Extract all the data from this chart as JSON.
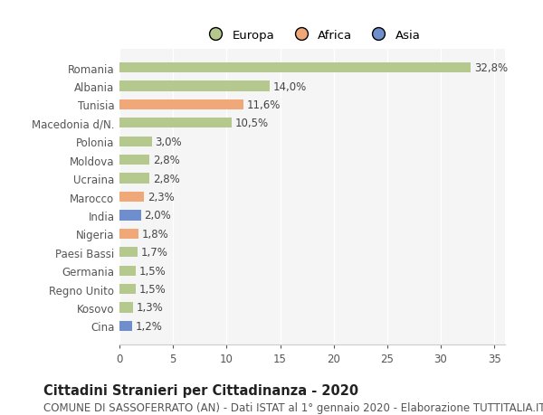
{
  "categories": [
    "Romania",
    "Albania",
    "Tunisia",
    "Macedonia d/N.",
    "Polonia",
    "Moldova",
    "Ucraina",
    "Marocco",
    "India",
    "Nigeria",
    "Paesi Bassi",
    "Germania",
    "Regno Unito",
    "Kosovo",
    "Cina"
  ],
  "values": [
    32.8,
    14.0,
    11.6,
    10.5,
    3.0,
    2.8,
    2.8,
    2.3,
    2.0,
    1.8,
    1.7,
    1.5,
    1.5,
    1.3,
    1.2
  ],
  "labels": [
    "32,8%",
    "14,0%",
    "11,6%",
    "10,5%",
    "3,0%",
    "2,8%",
    "2,8%",
    "2,3%",
    "2,0%",
    "1,8%",
    "1,7%",
    "1,5%",
    "1,5%",
    "1,3%",
    "1,2%"
  ],
  "continents": [
    "Europa",
    "Europa",
    "Africa",
    "Europa",
    "Europa",
    "Europa",
    "Europa",
    "Africa",
    "Asia",
    "Africa",
    "Europa",
    "Europa",
    "Europa",
    "Europa",
    "Asia"
  ],
  "colors": {
    "Europa": "#b5c98e",
    "Africa": "#f0a878",
    "Asia": "#6e8fcb"
  },
  "legend_labels": [
    "Europa",
    "Africa",
    "Asia"
  ],
  "legend_colors": [
    "#b5c98e",
    "#f0a878",
    "#6e8fcb"
  ],
  "title": "Cittadini Stranieri per Cittadinanza - 2020",
  "subtitle": "COMUNE DI SASSOFERRATO (AN) - Dati ISTAT al 1° gennaio 2020 - Elaborazione TUTTITALIA.IT",
  "xlim": [
    0,
    36
  ],
  "xticks": [
    0,
    5,
    10,
    15,
    20,
    25,
    30,
    35
  ],
  "background_color": "#ffffff",
  "plot_background_color": "#f5f5f5",
  "grid_color": "#ffffff",
  "bar_height": 0.55,
  "title_fontsize": 10.5,
  "subtitle_fontsize": 8.5,
  "tick_fontsize": 8.5,
  "label_fontsize": 8.5,
  "legend_fontsize": 9.5
}
